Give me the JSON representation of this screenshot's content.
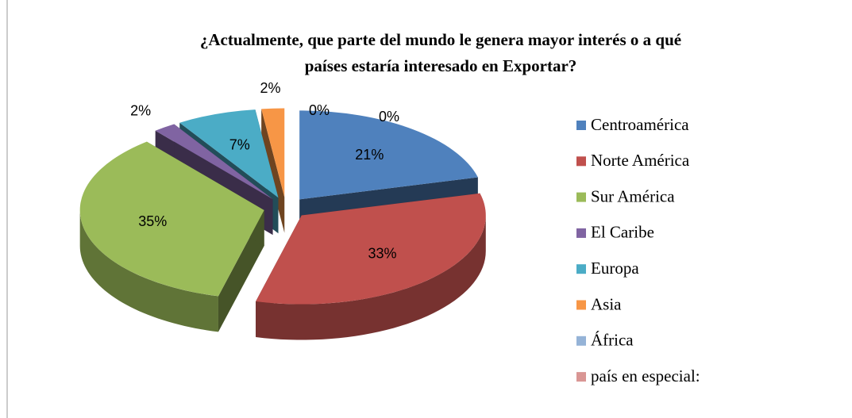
{
  "chart_data": {
    "type": "pie",
    "title": "¿Actualmente, que parte del mundo le genera mayor interés o a qué",
    "subtitle": "países estaría interesado en Exportar?",
    "categories": [
      "Centroamérica",
      "Norte América",
      "Sur América",
      "El Caribe",
      "Europa",
      "Asia",
      "África",
      "país en especial:"
    ],
    "values": [
      21,
      33,
      35,
      2,
      7,
      2,
      0,
      0
    ],
    "value_labels": [
      "21%",
      "33%",
      "35%",
      "2%",
      "7%",
      "2%",
      "0%",
      "0%"
    ],
    "colors": [
      "#4f81bd",
      "#c0504d",
      "#9bbb59",
      "#8064a2",
      "#4bacc6",
      "#f79646",
      "#95b3d7",
      "#d99694"
    ],
    "legend": "right"
  }
}
